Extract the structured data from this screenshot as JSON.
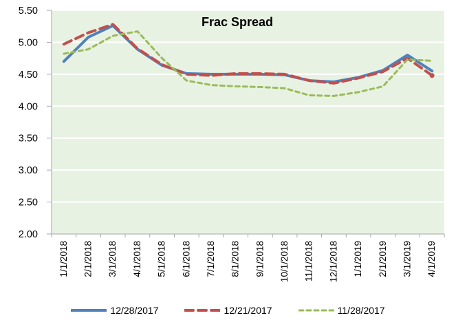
{
  "chart_data": {
    "type": "line",
    "title": "Frac Spread",
    "categories": [
      "1/1/2018",
      "2/1/2018",
      "3/1/2018",
      "4/1/2018",
      "5/1/2018",
      "6/1/2018",
      "7/1/2018",
      "8/1/2018",
      "9/1/2018",
      "10/1/2018",
      "11/1/2018",
      "12/1/2018",
      "1/1/2019",
      "2/1/2019",
      "3/1/2019",
      "4/1/2019"
    ],
    "series": [
      {
        "name": "12/28/2017",
        "color": "#4F81BD",
        "dash": "solid",
        "stroke_width": 4,
        "end_marker": false,
        "values": [
          4.7,
          5.08,
          5.26,
          4.89,
          4.64,
          4.51,
          4.5,
          4.5,
          4.5,
          4.49,
          4.4,
          4.38,
          4.45,
          4.56,
          4.8,
          4.55
        ]
      },
      {
        "name": "12/21/2017",
        "color": "#C0504D",
        "dash": "long-dash",
        "stroke_width": 4,
        "end_marker": true,
        "values": [
          4.97,
          5.15,
          5.28,
          4.9,
          4.65,
          4.5,
          4.48,
          4.51,
          4.51,
          4.5,
          4.4,
          4.36,
          4.44,
          4.54,
          4.75,
          4.48
        ]
      },
      {
        "name": "11/28/2017",
        "color": "#9BBB59",
        "dash": "short-dash",
        "stroke_width": 3,
        "end_marker": false,
        "values": [
          4.82,
          4.89,
          5.1,
          5.17,
          4.75,
          4.4,
          4.33,
          4.31,
          4.3,
          4.28,
          4.17,
          4.16,
          4.22,
          4.31,
          4.73,
          4.71
        ]
      }
    ],
    "ylim": [
      2.0,
      5.5
    ],
    "ytick_step": 0.5,
    "ytick_labels": [
      "2.00",
      "2.50",
      "3.00",
      "3.50",
      "4.00",
      "4.50",
      "5.00",
      "5.50"
    ],
    "grid": true,
    "legend_position": "bottom",
    "colors": {
      "plot_bg": "#E8F2E3",
      "grid": "#FFFFFF",
      "axis": "#A6A6A6",
      "text": "#000000"
    }
  }
}
